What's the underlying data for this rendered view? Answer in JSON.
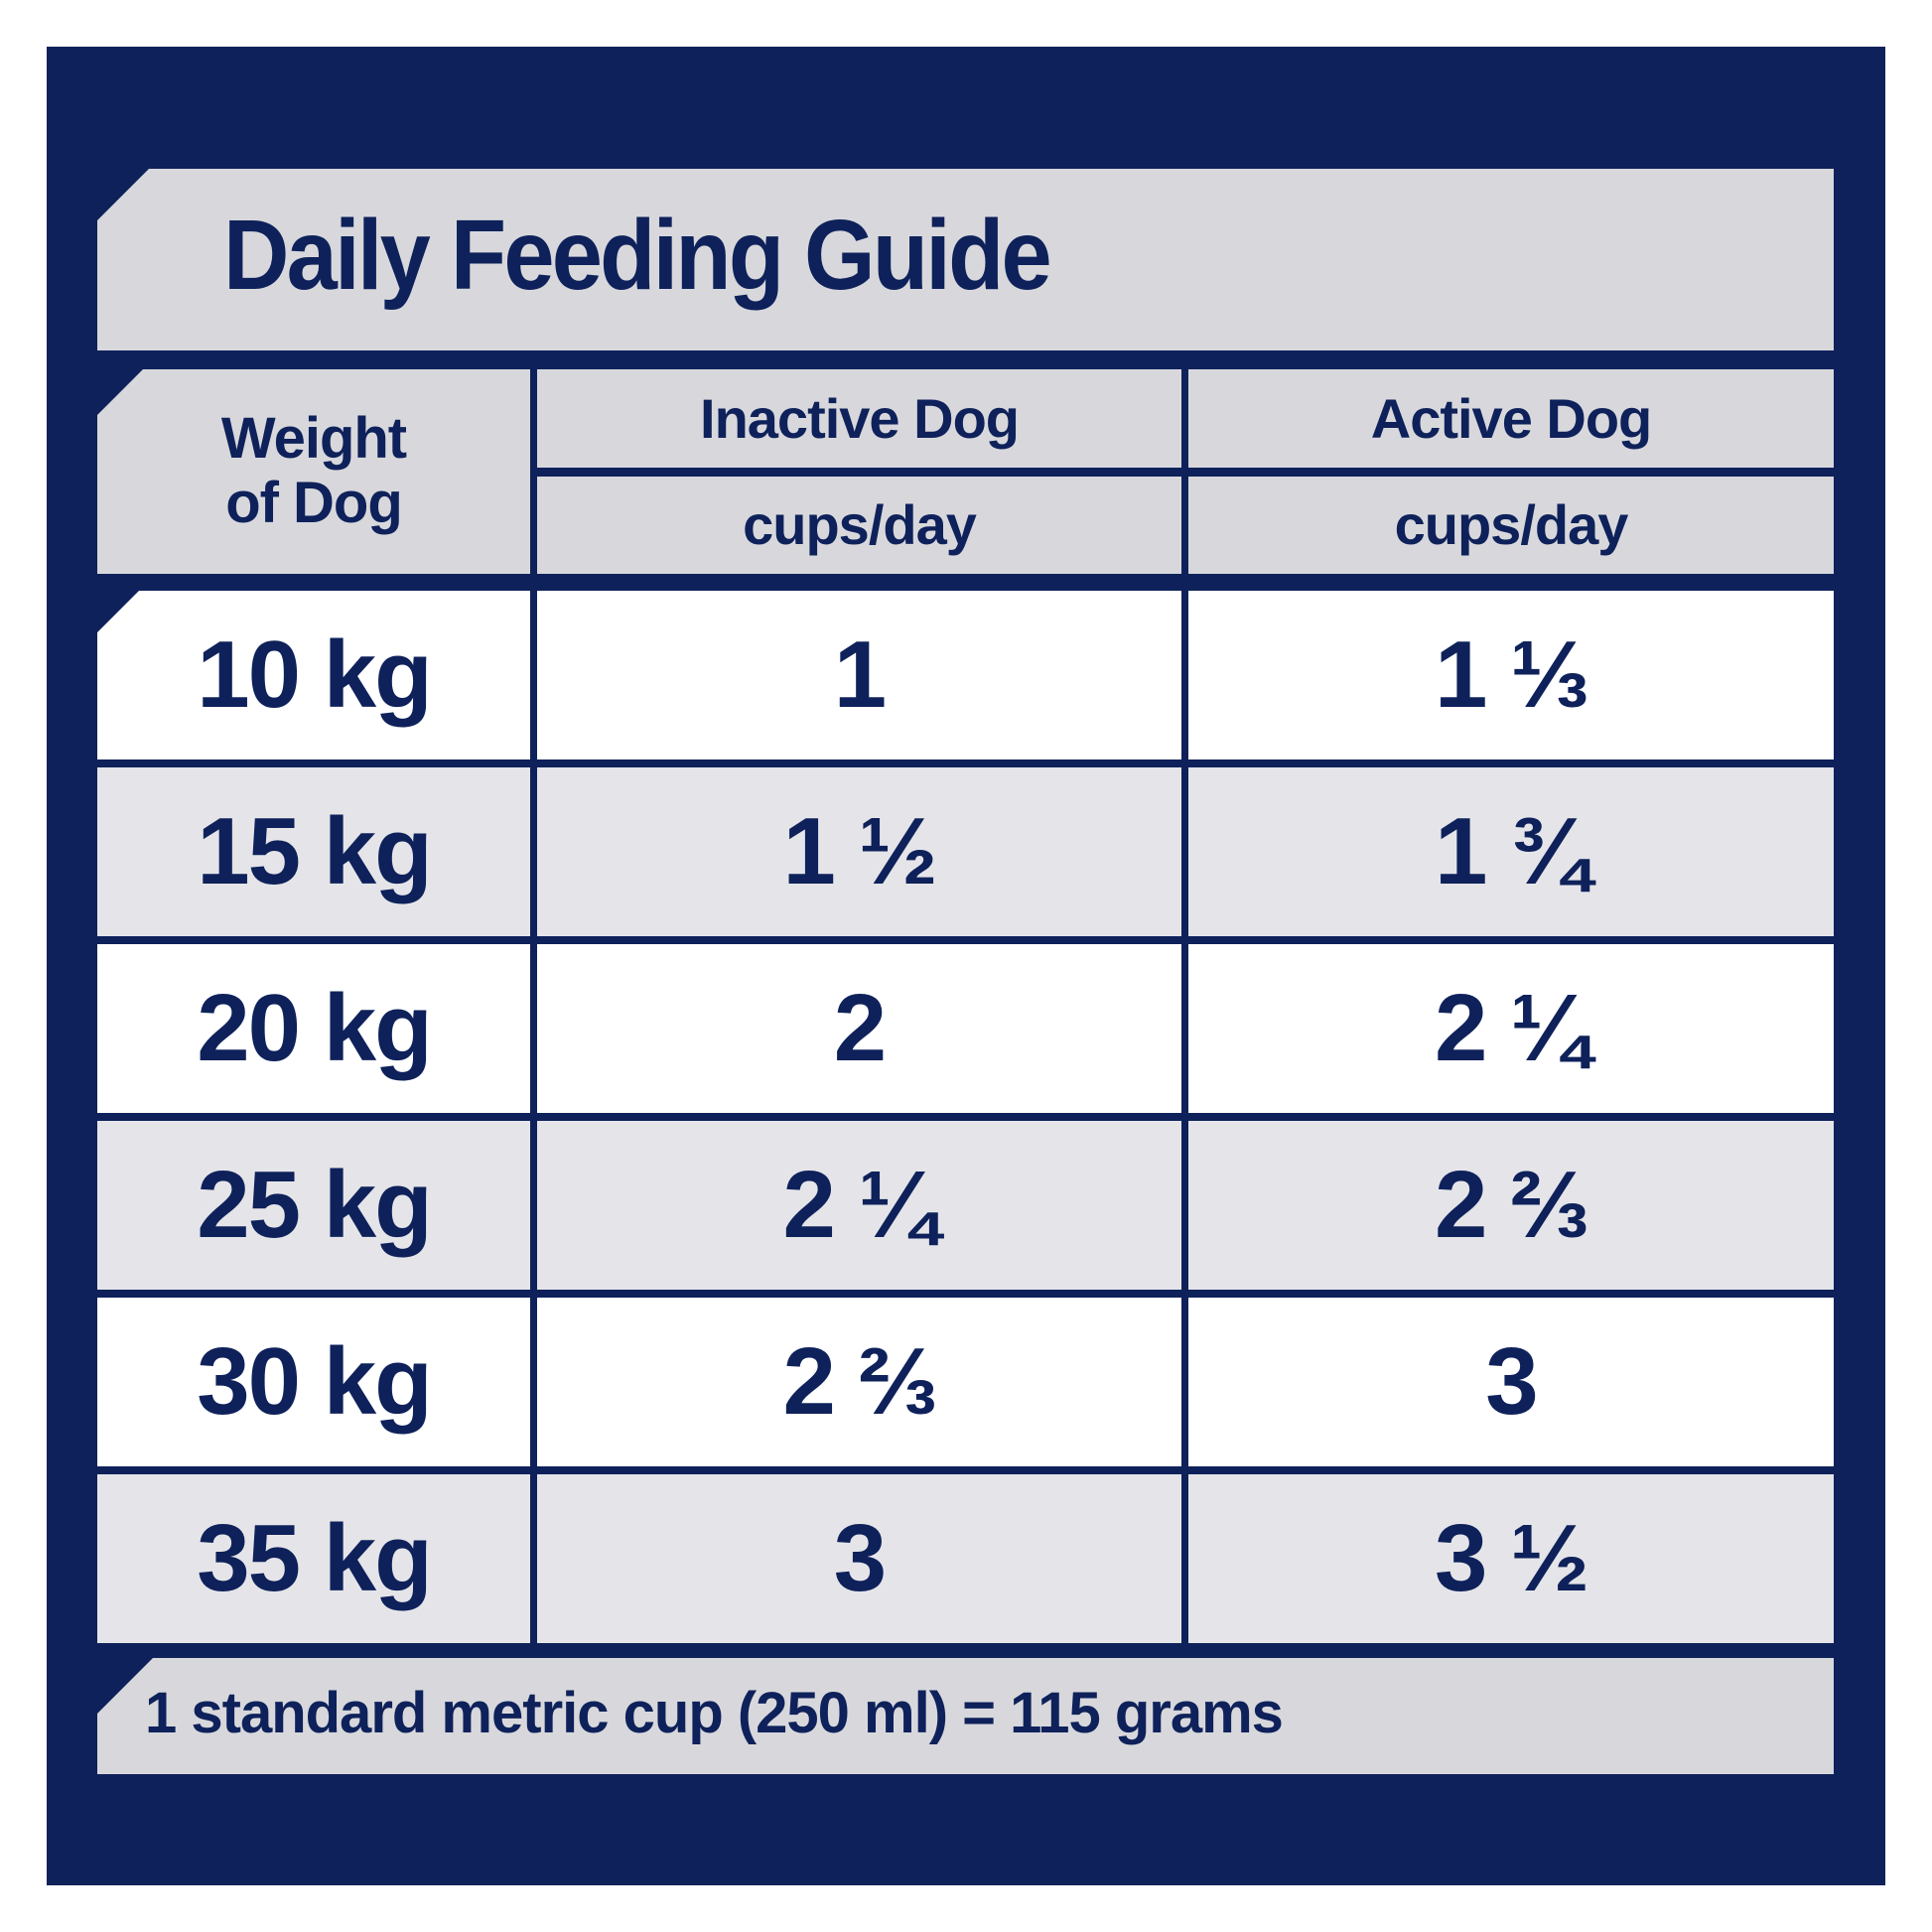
{
  "title": "Daily Feeding Guide",
  "table": {
    "columns": {
      "weight_line1": "Weight",
      "weight_line2": "of Dog",
      "inactive": "Inactive Dog",
      "active": "Active Dog",
      "unit": "cups/day"
    },
    "rows": [
      {
        "weight": "10 kg",
        "inactive": "1",
        "active": "1 ⅓"
      },
      {
        "weight": "15 kg",
        "inactive": "1 ½",
        "active": "1 ¾"
      },
      {
        "weight": "20 kg",
        "inactive": "2",
        "active": "2 ¼"
      },
      {
        "weight": "25 kg",
        "inactive": "2 ¼",
        "active": "2 ⅔"
      },
      {
        "weight": "30 kg",
        "inactive": "2 ⅔",
        "active": "3"
      },
      {
        "weight": "35 kg",
        "inactive": "3",
        "active": "3 ½"
      }
    ]
  },
  "footer": {
    "note": "1 standard metric cup (250 ml) = 115 grams"
  },
  "colors": {
    "navy": "#0E215A",
    "panel_gray": "#D8D8DC",
    "row_gray": "#E5E5E9",
    "row_white": "#FFFFFF"
  }
}
